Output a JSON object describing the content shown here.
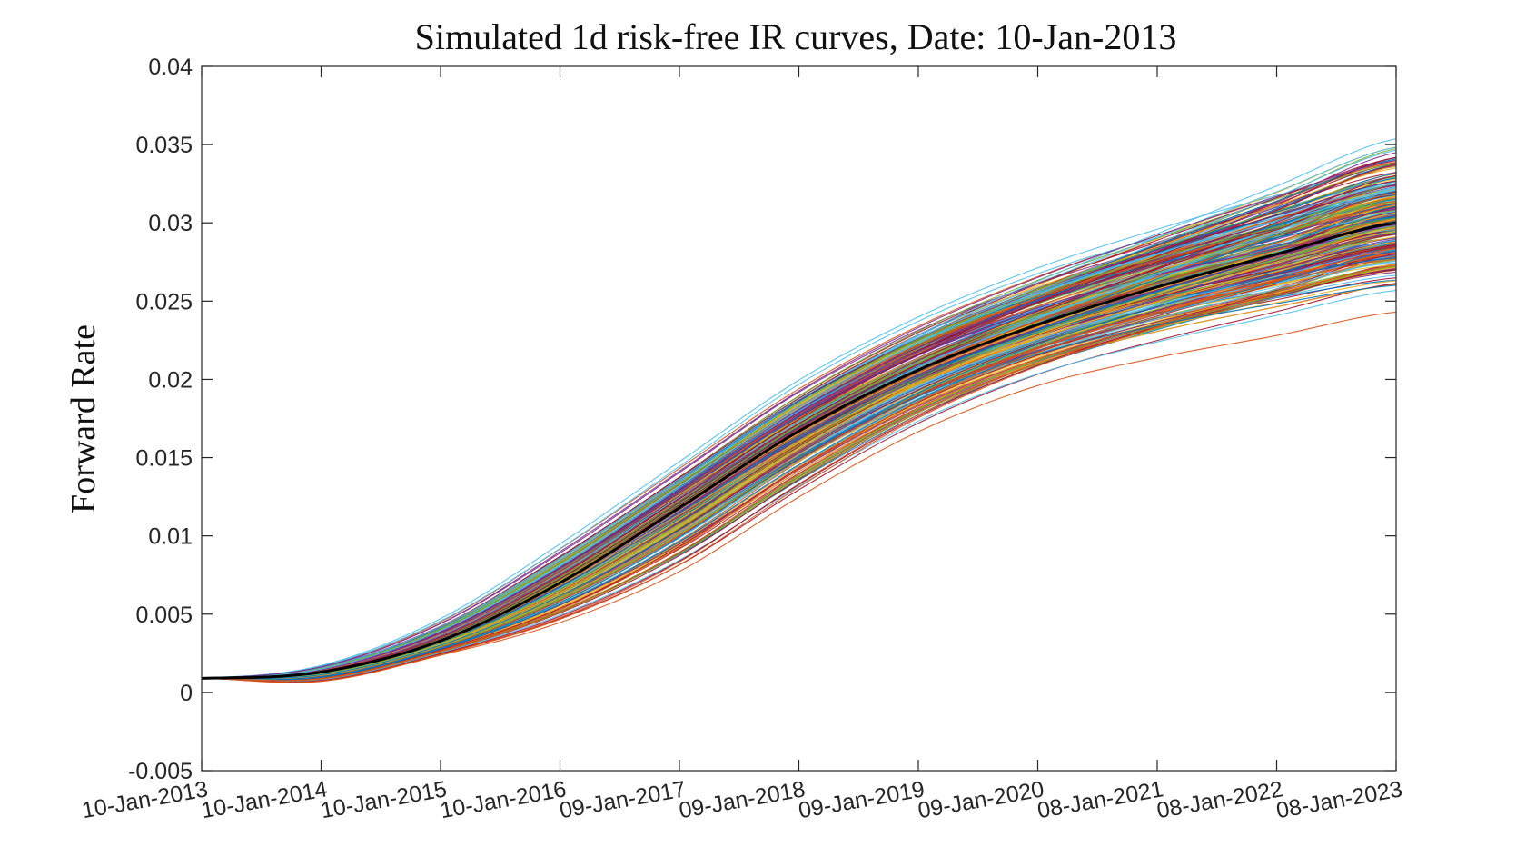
{
  "chart_data": {
    "type": "line",
    "title": "Simulated 1d risk-free IR curves, Date: 10-Jan-2013",
    "xlabel": "",
    "ylabel": "Forward Rate",
    "x_ticks": [
      "10-Jan-2013",
      "10-Jan-2014",
      "10-Jan-2015",
      "10-Jan-2016",
      "09-Jan-2017",
      "09-Jan-2018",
      "09-Jan-2019",
      "09-Jan-2020",
      "08-Jan-2021",
      "08-Jan-2022",
      "08-Jan-2023"
    ],
    "y_ticks": [
      "-0.005",
      "0",
      "0.005",
      "0.01",
      "0.015",
      "0.02",
      "0.025",
      "0.03",
      "0.035",
      "0.04"
    ],
    "xlim": [
      "10-Jan-2013",
      "08-Jan-2023"
    ],
    "ylim": [
      -0.005,
      0.04
    ],
    "grid": false,
    "legend": "none",
    "mean_curve": {
      "color": "#000000",
      "x": [
        "10-Jan-2013",
        "10-Jan-2014",
        "10-Jan-2015",
        "10-Jan-2016",
        "09-Jan-2017",
        "09-Jan-2018",
        "09-Jan-2019",
        "09-Jan-2020",
        "08-Jan-2021",
        "08-Jan-2022",
        "08-Jan-2023"
      ],
      "y": [
        0.0009,
        0.0013,
        0.0033,
        0.007,
        0.0118,
        0.0167,
        0.0206,
        0.0235,
        0.0259,
        0.028,
        0.03
      ]
    },
    "simulation_paths": {
      "count": 300,
      "palette": [
        "#0072BD",
        "#D95319",
        "#EDB120",
        "#7E2F8E",
        "#77AC30",
        "#4DBEEE",
        "#A2142F"
      ],
      "x": [
        "10-Jan-2013",
        "10-Jan-2014",
        "10-Jan-2015",
        "10-Jan-2016",
        "09-Jan-2017",
        "09-Jan-2018",
        "09-Jan-2019",
        "09-Jan-2020",
        "08-Jan-2021",
        "08-Jan-2022",
        "08-Jan-2023"
      ],
      "envelope_low": [
        0.0009,
        -0.0014,
        0.0012,
        0.0032,
        0.0065,
        0.0115,
        0.016,
        0.0192,
        0.0212,
        0.0228,
        0.0243
      ],
      "envelope_high": [
        0.0009,
        0.003,
        0.0062,
        0.0105,
        0.0155,
        0.0208,
        0.025,
        0.0285,
        0.0315,
        0.0345,
        0.0373
      ]
    }
  }
}
